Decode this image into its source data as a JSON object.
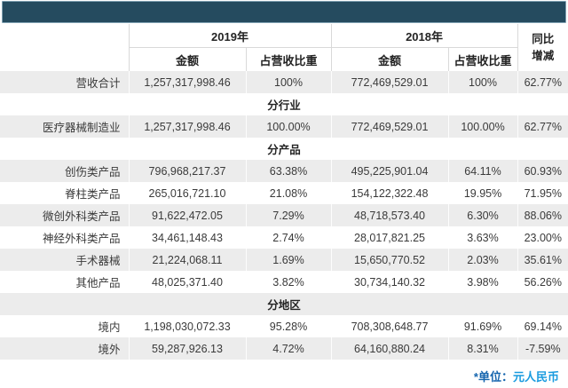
{
  "colors": {
    "top_bar": "#254b5f",
    "stripe": "#ececec",
    "footnote_prefix": "#1565ae",
    "footnote_unit": "#199bdf"
  },
  "table": {
    "header": {
      "year_2019": "2019年",
      "year_2018": "2018年",
      "amount": "金额",
      "ratio": "占营收比重",
      "yoy_line1": "同比",
      "yoy_line2": "增减"
    },
    "rows": [
      {
        "type": "data",
        "label": "营收合计",
        "a2019": "1,257,317,998.46",
        "r2019": "100%",
        "a2018": "772,469,529.01",
        "r2018": "100%",
        "yoy": "62.77%"
      },
      {
        "type": "section",
        "label": "分行业"
      },
      {
        "type": "data",
        "label": "医疗器械制造业",
        "a2019": "1,257,317,998.46",
        "r2019": "100.00%",
        "a2018": "772,469,529.01",
        "r2018": "100.00%",
        "yoy": "62.77%"
      },
      {
        "type": "section",
        "label": "分产品"
      },
      {
        "type": "data",
        "label": "创伤类产品",
        "a2019": "796,968,217.37",
        "r2019": "63.38%",
        "a2018": "495,225,901.04",
        "r2018": "64.11%",
        "yoy": "60.93%"
      },
      {
        "type": "data",
        "label": "脊柱类产品",
        "a2019": "265,016,721.10",
        "r2019": "21.08%",
        "a2018": "154,122,322.48",
        "r2018": "19.95%",
        "yoy": "71.95%"
      },
      {
        "type": "data",
        "label": "微创外科类产品",
        "a2019": "91,622,472.05",
        "r2019": "7.29%",
        "a2018": "48,718,573.40",
        "r2018": "6.30%",
        "yoy": "88.06%"
      },
      {
        "type": "data",
        "label": "神经外科类产品",
        "a2019": "34,461,148.43",
        "r2019": "2.74%",
        "a2018": "28,017,821.25",
        "r2018": "3.63%",
        "yoy": "23.00%"
      },
      {
        "type": "data",
        "label": "手术器械",
        "a2019": "21,224,068.11",
        "r2019": "1.69%",
        "a2018": "15,650,770.52",
        "r2018": "2.03%",
        "yoy": "35.61%"
      },
      {
        "type": "data",
        "label": "其他产品",
        "a2019": "48,025,371.40",
        "r2019": "3.82%",
        "a2018": "30,734,140.32",
        "r2018": "3.98%",
        "yoy": "56.26%"
      },
      {
        "type": "section",
        "label": "分地区"
      },
      {
        "type": "data",
        "label": "境内",
        "a2019": "1,198,030,072.33",
        "r2019": "95.28%",
        "a2018": "708,308,648.77",
        "r2018": "91.69%",
        "yoy": "69.14%"
      },
      {
        "type": "data",
        "label": "境外",
        "a2019": "59,287,926.13",
        "r2019": "4.72%",
        "a2018": "64,160,880.24",
        "r2018": "8.31%",
        "yoy": "-7.59%"
      }
    ],
    "footnote": {
      "prefix": "*单位：",
      "unit": "元人民币"
    }
  }
}
